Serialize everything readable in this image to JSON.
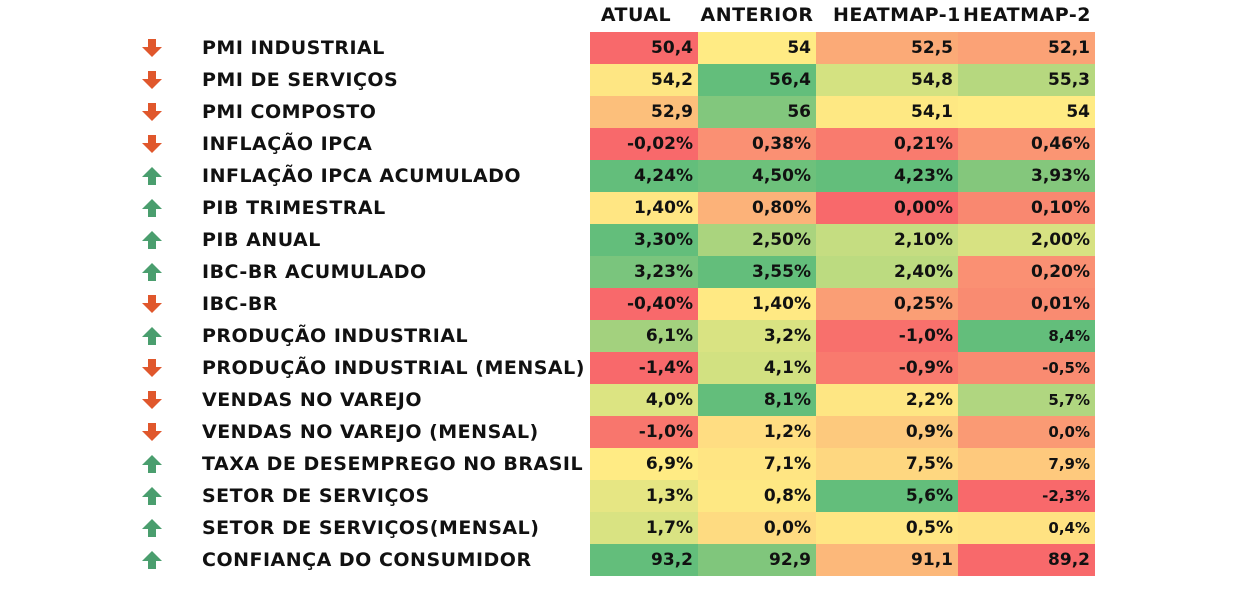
{
  "columns": [
    "ATUAL",
    "ANTERIOR",
    "HEATMAP-1",
    "HEATMAP-2"
  ],
  "colors": {
    "up_arrow": "#4a9e6e",
    "down_arrow": "#e0572c"
  },
  "rows": [
    {
      "label": "PMI INDUSTRIAL",
      "arrow": "down",
      "values": [
        "50,4",
        "54",
        "52,5",
        "52,1"
      ],
      "colors": [
        "#f8696b",
        "#ffeb84",
        "#fbaa77",
        "#fba276"
      ]
    },
    {
      "label": "PMI DE SERVIÇOS",
      "arrow": "down",
      "values": [
        "54,2",
        "56,4",
        "54,8",
        "55,3"
      ],
      "colors": [
        "#fee683",
        "#63be7b",
        "#d4e281",
        "#b6d87f"
      ]
    },
    {
      "label": "PMI COMPOSTO",
      "arrow": "down",
      "values": [
        "52,9",
        "56",
        "54,1",
        "54"
      ],
      "colors": [
        "#fcbf7b",
        "#82c77d",
        "#fee883",
        "#ffeb84"
      ]
    },
    {
      "label": "INFLAÇÃO IPCA",
      "arrow": "down",
      "values": [
        "-0,02%",
        "0,38%",
        "0,21%",
        "0,46%"
      ],
      "colors": [
        "#f8696b",
        "#fa9073",
        "#f97b6e",
        "#fa9573"
      ]
    },
    {
      "label": "INFLAÇÃO IPCA ACUMULADO",
      "arrow": "up",
      "values": [
        "4,24%",
        "4,50%",
        "4,23%",
        "3,93%"
      ],
      "colors": [
        "#63be7b",
        "#6dc17b",
        "#63be7b",
        "#84c77c"
      ]
    },
    {
      "label": "PIB TRIMESTRAL",
      "arrow": "up",
      "values": [
        "1,40%",
        "0,80%",
        "0,00%",
        "0,10%"
      ],
      "colors": [
        "#ffe683",
        "#fcb279",
        "#f8696b",
        "#f98870"
      ]
    },
    {
      "label": "PIB ANUAL",
      "arrow": "up",
      "values": [
        "3,30%",
        "2,50%",
        "2,10%",
        "2,00%"
      ],
      "colors": [
        "#63be7b",
        "#aad47e",
        "#c5dd81",
        "#d7e282"
      ]
    },
    {
      "label": "IBC-BR ACUMULADO",
      "arrow": "up",
      "values": [
        "3,23%",
        "3,55%",
        "2,40%",
        "0,20%"
      ],
      "colors": [
        "#7ac57d",
        "#63be7b",
        "#bcdb80",
        "#fa9073"
      ]
    },
    {
      "label": "IBC-BR",
      "arrow": "down",
      "values": [
        "-0,40%",
        "1,40%",
        "0,25%",
        "0,01%"
      ],
      "colors": [
        "#f8696b",
        "#ffe983",
        "#fa9e75",
        "#f98b71"
      ]
    },
    {
      "label": "PRODUÇÃO INDUSTRIAL",
      "arrow": "up",
      "values": [
        "6,1%",
        "3,2%",
        "-1,0%",
        "8,4%"
      ],
      "colors": [
        "#a3d17e",
        "#d9e382",
        "#f8706c",
        "#63be7b"
      ]
    },
    {
      "label": "PRODUÇÃO INDUSTRIAL (MENSAL)",
      "arrow": "down",
      "values": [
        "-1,4%",
        "4,1%",
        "-0,9%",
        "-0,5%"
      ],
      "colors": [
        "#f8696b",
        "#d2e181",
        "#f97a6e",
        "#f98b71"
      ]
    },
    {
      "label": "VENDAS NO VAREJO",
      "arrow": "down",
      "values": [
        "4,0%",
        "8,1%",
        "2,2%",
        "5,7%"
      ],
      "colors": [
        "#dce482",
        "#63be7b",
        "#fee683",
        "#b0d680"
      ]
    },
    {
      "label": "VENDAS NO VAREJO (MENSAL)",
      "arrow": "down",
      "values": [
        "-1,0%",
        "1,2%",
        "0,9%",
        "0,0%"
      ],
      "colors": [
        "#f8766d",
        "#ffdd82",
        "#fdc97d",
        "#fa9a74"
      ]
    },
    {
      "label": "TAXA DE DESEMPREGO NO BRASIL",
      "arrow": "up",
      "values": [
        "6,9%",
        "7,1%",
        "7,5%",
        "7,9%"
      ],
      "colors": [
        "#ffeb84",
        "#ffe583",
        "#fed780",
        "#fec97d"
      ]
    },
    {
      "label": "SETOR DE SERVIÇOS",
      "arrow": "up",
      "values": [
        "1,3%",
        "0,8%",
        "5,6%",
        "-2,3%"
      ],
      "colors": [
        "#e6e683",
        "#fee883",
        "#63be7b",
        "#f8696b"
      ]
    },
    {
      "label": "SETOR DE SERVIÇOS(MENSAL)",
      "arrow": "up",
      "values": [
        "1,7%",
        "0,0%",
        "0,5%",
        "0,4%"
      ],
      "colors": [
        "#d9e382",
        "#fedb81",
        "#ffe683",
        "#ffe282"
      ]
    },
    {
      "label": "CONFIANÇA DO CONSUMIDOR",
      "arrow": "up",
      "values": [
        "93,2",
        "92,9",
        "91,1",
        "89,2"
      ],
      "colors": [
        "#63be7b",
        "#80c67c",
        "#fcb87a",
        "#f8696b"
      ]
    }
  ]
}
